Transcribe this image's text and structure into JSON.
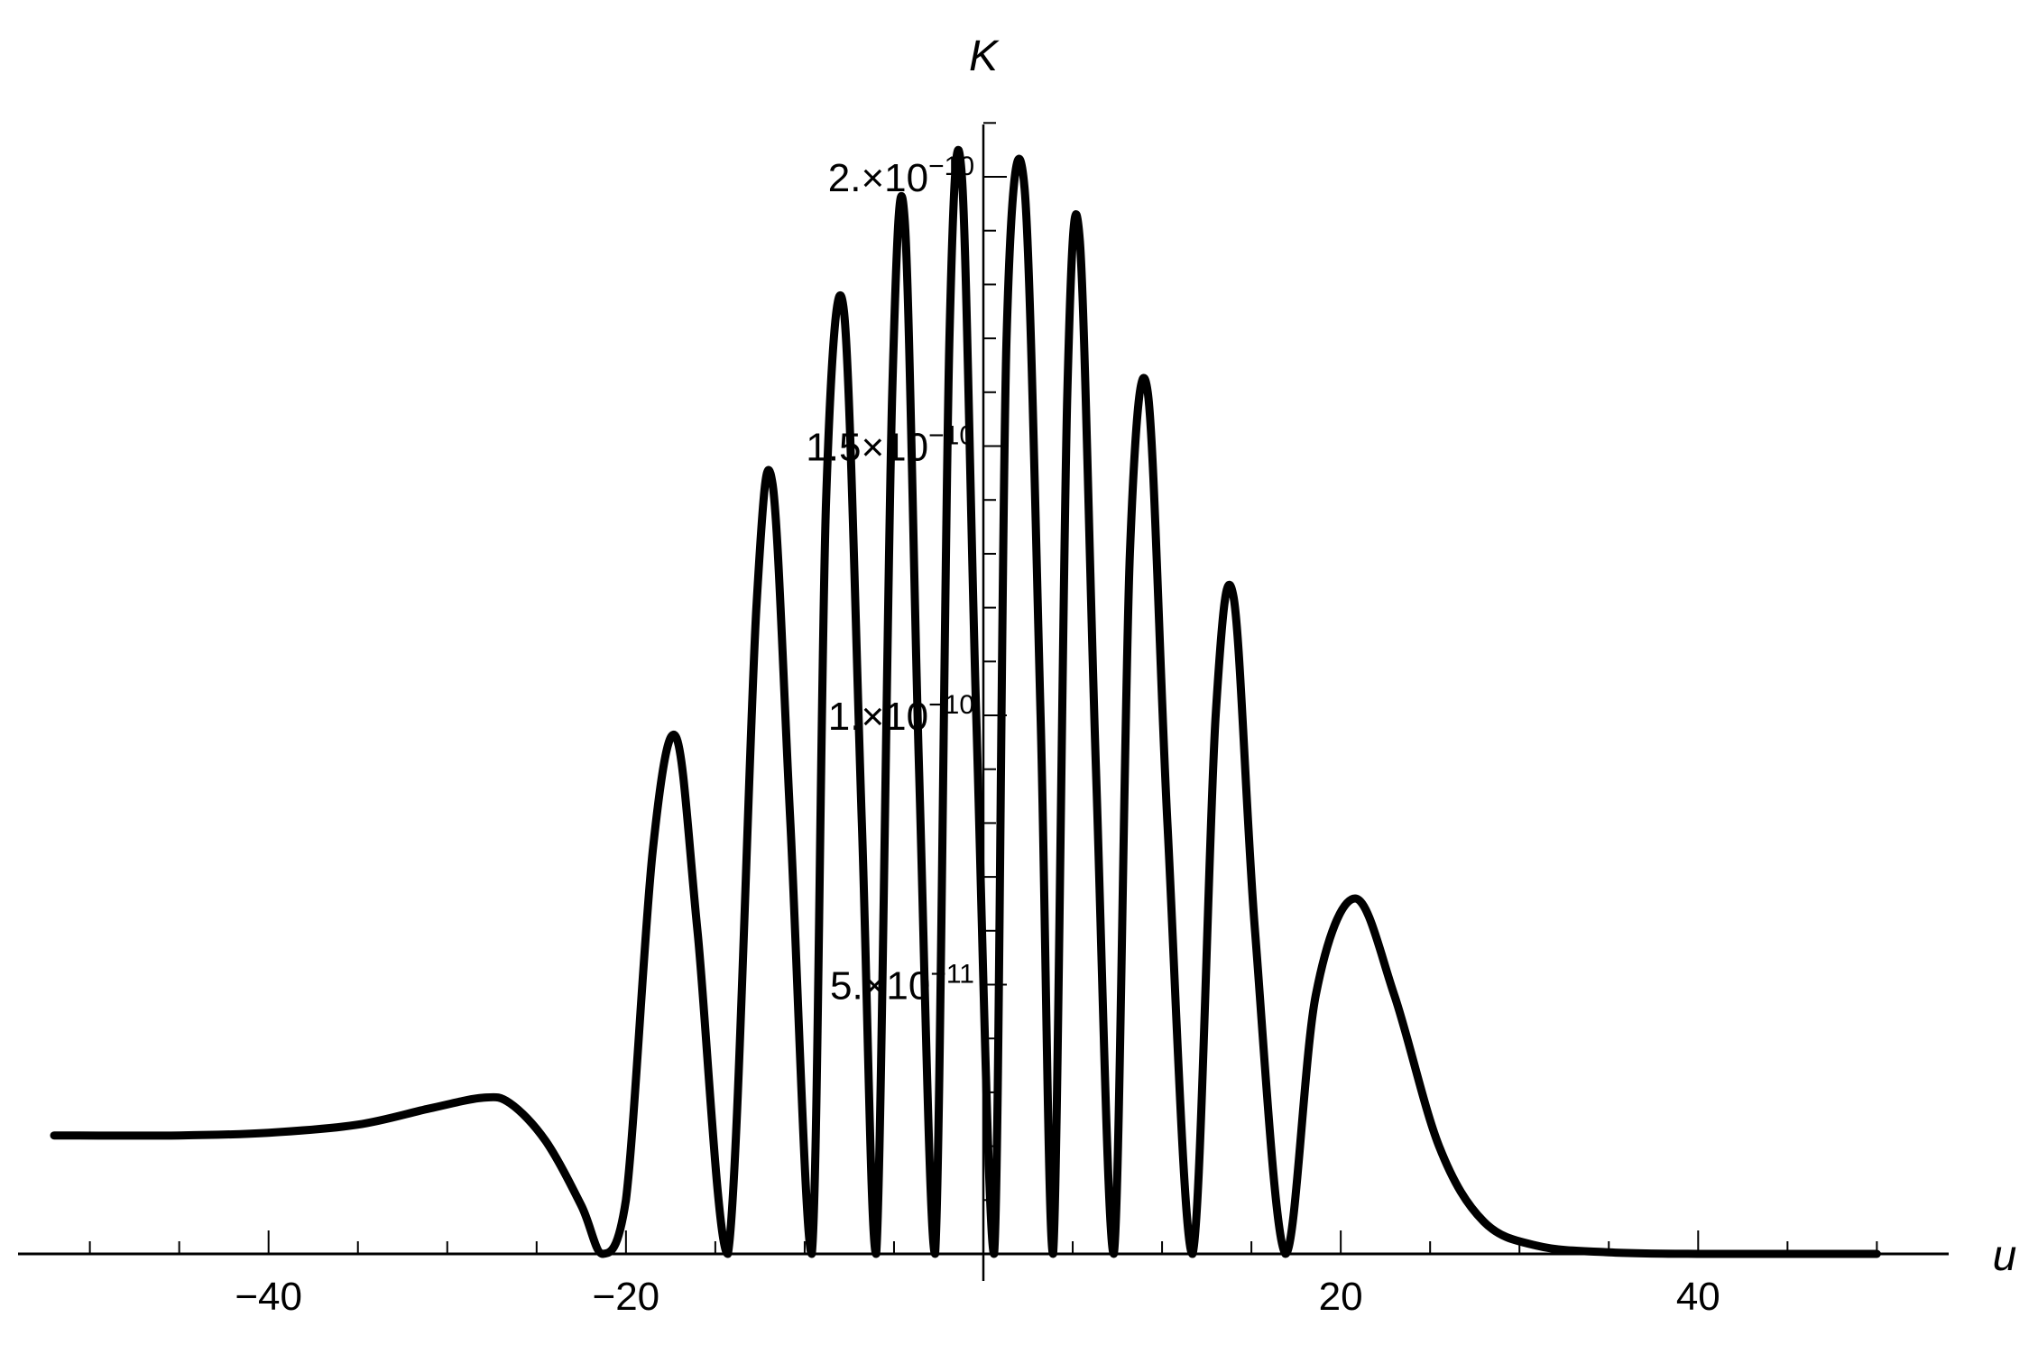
{
  "chart_data": {
    "type": "line",
    "title": "",
    "xlabel": "u",
    "ylabel": "K",
    "xlim": [
      -52,
      52
    ],
    "ylim": [
      0,
      2.1e-10
    ],
    "x_ticks": [
      {
        "value": -40,
        "label": "-40"
      },
      {
        "value": -20,
        "label": "-20"
      },
      {
        "value": 20,
        "label": "20"
      },
      {
        "value": 40,
        "label": "40"
      }
    ],
    "y_ticks": [
      {
        "value": 5e-11,
        "mantissa": "5.",
        "exponent": "-11"
      },
      {
        "value": 1e-10,
        "mantissa": "1.",
        "exponent": "-10"
      },
      {
        "value": 1.5e-10,
        "mantissa": "1.5",
        "exponent": "-10"
      },
      {
        "value": 2e-10,
        "mantissa": "2.",
        "exponent": "-10"
      }
    ],
    "grid": false,
    "legend": "none",
    "line_color": "#000000",
    "series": [
      {
        "name": "",
        "points": [
          [
            -52,
            2.2e-11
          ],
          [
            -45,
            2.2e-11
          ],
          [
            -40,
            2.25e-11
          ],
          [
            -35,
            2.4e-11
          ],
          [
            -31,
            2.7e-11
          ],
          [
            -28,
            2.9e-11
          ],
          [
            -26.5,
            2.8e-11
          ],
          [
            -24.5,
            2.1e-11
          ],
          [
            -22.5,
            9e-12
          ],
          [
            -21.3,
            0
          ],
          [
            -20,
            1e-11
          ],
          [
            -18.5,
            7.5e-11
          ],
          [
            -17.2,
            9.6e-11
          ],
          [
            -16,
            6e-11
          ],
          [
            -14.3,
            0
          ],
          [
            -12.7,
            1.2e-10
          ],
          [
            -11.8,
            1.43e-10
          ],
          [
            -10.8,
            8e-11
          ],
          [
            -9.6,
            0
          ],
          [
            -8.8,
            1.4e-10
          ],
          [
            -7.8,
            1.75e-10
          ],
          [
            -6.8,
            8e-11
          ],
          [
            -6.0,
            0
          ],
          [
            -5.1,
            1.6e-10
          ],
          [
            -4.4,
            1.92e-10
          ],
          [
            -3.6,
            9e-11
          ],
          [
            -2.7,
            0
          ],
          [
            -1.9,
            1.7e-10
          ],
          [
            -1.2,
            2e-10
          ],
          [
            -0.4,
            1e-10
          ],
          [
            0.6,
            0
          ],
          [
            1.3,
            1.7e-10
          ],
          [
            2.3,
            1.98e-10
          ],
          [
            3.2,
            1e-10
          ],
          [
            3.9,
            0
          ],
          [
            4.7,
            1.6e-10
          ],
          [
            5.4,
            1.88e-10
          ],
          [
            6.3,
            9e-11
          ],
          [
            7.3,
            0
          ],
          [
            8.2,
            1.3e-10
          ],
          [
            9.2,
            1.6e-10
          ],
          [
            10.3,
            8e-11
          ],
          [
            11.7,
            0
          ],
          [
            13.0,
            1e-10
          ],
          [
            14.0,
            1.22e-10
          ],
          [
            15.2,
            6e-11
          ],
          [
            16.9,
            0
          ],
          [
            18.6,
            4.8e-11
          ],
          [
            20.8,
            6.6e-11
          ],
          [
            23.0,
            4.8e-11
          ],
          [
            25.5,
            2e-11
          ],
          [
            28,
            6e-12
          ],
          [
            31,
            1.5e-12
          ],
          [
            35,
            3e-13
          ],
          [
            40,
            0
          ],
          [
            50,
            0
          ]
        ]
      }
    ]
  }
}
